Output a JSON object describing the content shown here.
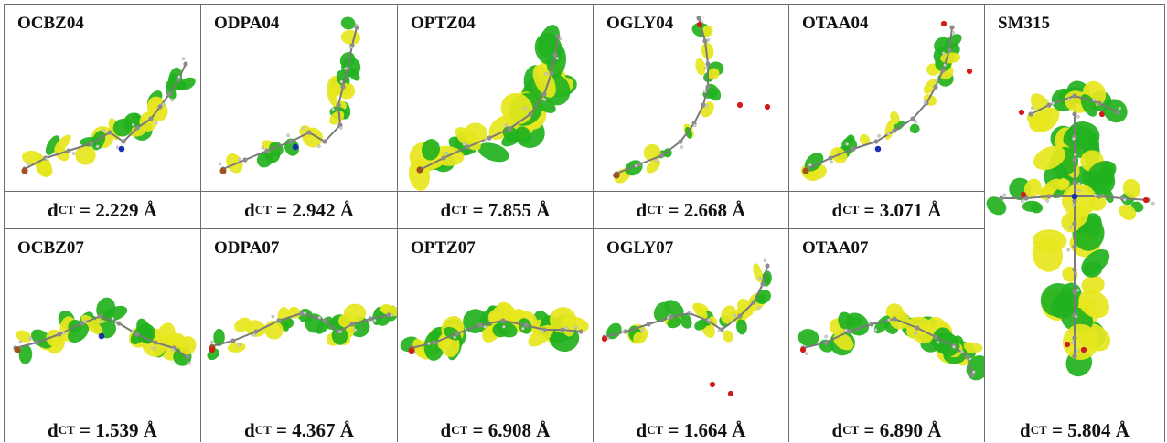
{
  "rows": [
    {
      "molecules": [
        {
          "name": "OCBZ04",
          "value": "2.229 Å",
          "sep": " = "
        },
        {
          "name": "ODPA04",
          "value": "2.942 Å",
          "sep": " = "
        },
        {
          "name": "OPTZ04",
          "value": "7.855 Å",
          "sep": " = "
        },
        {
          "name": "OGLY04",
          "value": "2.668 Å",
          "sep": " = "
        },
        {
          "name": "OTAA04",
          "value": "3.071 Å",
          "sep": " = "
        }
      ]
    },
    {
      "molecules": [
        {
          "name": "OCBZ07",
          "value": "1.539 Å",
          "sep": " = "
        },
        {
          "name": "ODPA07",
          "value": "4.367 Å",
          "sep": " = "
        },
        {
          "name": "OPTZ07",
          "value": "6.908 Å",
          "sep": " = "
        },
        {
          "name": "OGLY07",
          "value": "1.664 Å",
          "sep": " = "
        },
        {
          "name": "OTAA07",
          "value": "6.890 Å",
          "sep": " = "
        }
      ]
    }
  ],
  "side": {
    "name": "SM315",
    "value": "5.804 Å",
    "sep": " = "
  },
  "symbol": {
    "d": "d",
    "sub": "CT"
  },
  "colors": {
    "orbital_green": "#22b11f",
    "orbital_yellow": "#e6e61e",
    "carbon_gray": "#8c8c8c",
    "hydrogen": "#e8e8e8",
    "oxygen": "#d11a1a",
    "nitrogen": "#1b2fb0",
    "bromine": "#a0521d",
    "sulfur": "#d8b400",
    "grid": "#6e6e6e"
  }
}
